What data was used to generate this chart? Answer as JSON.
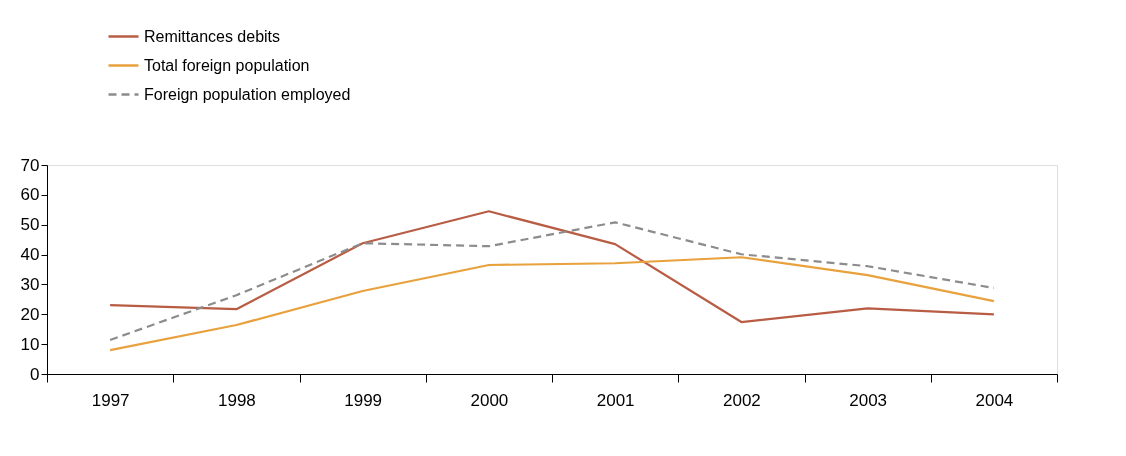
{
  "chart_data": {
    "type": "line",
    "categories": [
      "1997",
      "1998",
      "1999",
      "2000",
      "2001",
      "2002",
      "2003",
      "2004"
    ],
    "series": [
      {
        "name": "Remittances debits",
        "color": "#b85c44",
        "line_style": "solid",
        "values": [
          23.1,
          21.7,
          43.8,
          54.5,
          43.5,
          17.4,
          22,
          20
        ]
      },
      {
        "name": "Total foreign population",
        "color": "#e8a13c",
        "line_style": "solid",
        "values": [
          8,
          16.4,
          27.8,
          36.5,
          37.1,
          39.1,
          33.1,
          24.4
        ]
      },
      {
        "name": "Foreign population employed",
        "color": "#8c8c8c",
        "line_style": "dashed",
        "values": [
          11.4,
          26.4,
          43.8,
          42.8,
          50.8,
          40.1,
          36.1,
          28.8
        ]
      }
    ],
    "ylim": [
      0,
      70
    ],
    "yticks": [
      0,
      10,
      20,
      30,
      40,
      50,
      60,
      70
    ],
    "grid": false,
    "legend": "top left",
    "marker": "none"
  }
}
